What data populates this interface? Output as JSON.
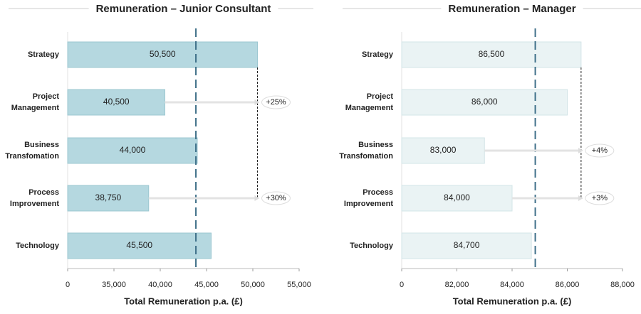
{
  "chart_data": [
    {
      "type": "bar",
      "orientation": "horizontal",
      "title": "Remuneration – Junior Consultant",
      "xlabel": "Total Remuneration p.a. (£)",
      "categories": [
        "Strategy",
        "Project\nManagement",
        "Business\nTransfomation",
        "Process\nImprovement",
        "Technology"
      ],
      "values": [
        50500,
        40500,
        44000,
        38750,
        45500
      ],
      "value_labels": [
        "50,500",
        "40,500",
        "44,000",
        "38,750",
        "45,500"
      ],
      "color": "#b5d8e0",
      "edge_color": "#9cc7d1",
      "xlim": [
        0,
        55000
      ],
      "xticks": [
        0,
        {
          "value": 35000,
          "label": "35,000"
        },
        {
          "value": 40000,
          "label": "40,000"
        },
        {
          "value": 45000,
          "label": "45,000"
        },
        {
          "value": 50000,
          "label": "50,000"
        },
        {
          "value": 55000,
          "label": "55,000"
        }
      ],
      "reference_line": 43850,
      "annotations": [
        {
          "row": 1,
          "label": "+25%"
        },
        {
          "row": 3,
          "label": "+30%"
        }
      ]
    },
    {
      "type": "bar",
      "orientation": "horizontal",
      "title": "Remuneration – Manager",
      "xlabel": "Total Remuneration p.a. (£)",
      "categories": [
        "Strategy",
        "Project\nManagement",
        "Business\nTransfomation",
        "Process\nImprovement",
        "Technology"
      ],
      "values": [
        86500,
        86000,
        83000,
        84000,
        84700
      ],
      "value_labels": [
        "86,500",
        "86,000",
        "83,000",
        "84,000",
        "84,700"
      ],
      "color": "#eaf3f4",
      "edge_color": "#d3e4e7",
      "xlim": [
        0,
        88000
      ],
      "xticks": [
        0,
        {
          "value": 82000,
          "label": "82,000"
        },
        {
          "value": 84000,
          "label": "84,000"
        },
        {
          "value": 86000,
          "label": "86,000"
        },
        {
          "value": 88000,
          "label": "88,000"
        }
      ],
      "reference_line": 84840,
      "annotations": [
        {
          "row": 2,
          "label": "+4%"
        },
        {
          "row": 3,
          "label": "+3%"
        }
      ]
    }
  ]
}
